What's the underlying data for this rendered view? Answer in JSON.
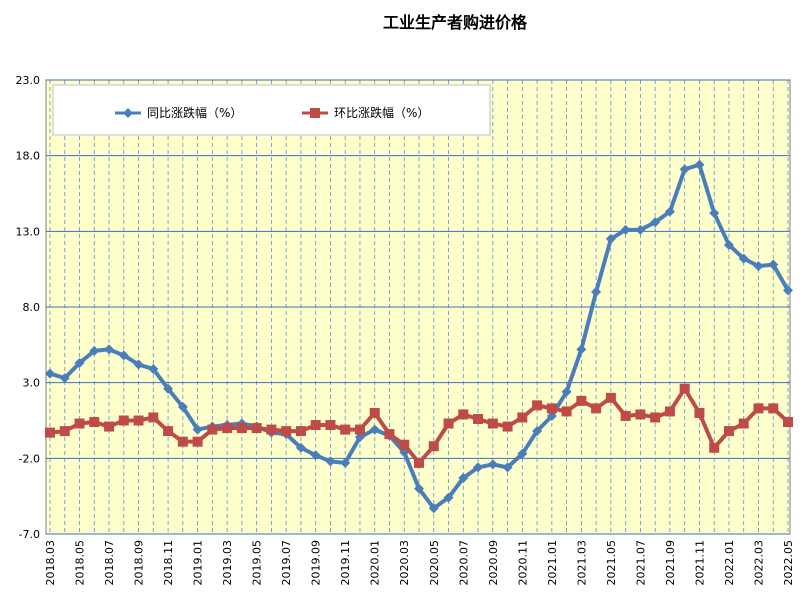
{
  "chart_data": {
    "type": "line",
    "title": "工业生产者购进价格",
    "ylim": [
      -7.0,
      23.0
    ],
    "yticks": [
      "23.0",
      "18.0",
      "13.0",
      "8.0",
      "3.0",
      "-2.0",
      "-7.0"
    ],
    "grid": {
      "horizontal": true,
      "vertical": "dashed"
    },
    "legend_position": "top-left",
    "x": [
      "2018.03",
      "2018.04",
      "2018.05",
      "2018.06",
      "2018.07",
      "2018.08",
      "2018.09",
      "2018.10",
      "2018.11",
      "2018.12",
      "2019.01",
      "2019.02",
      "2019.03",
      "2019.04",
      "2019.05",
      "2019.06",
      "2019.07",
      "2019.08",
      "2019.09",
      "2019.10",
      "2019.11",
      "2019.12",
      "2020.01",
      "2020.02",
      "2020.03",
      "2020.04",
      "2020.05",
      "2020.06",
      "2020.07",
      "2020.08",
      "2020.09",
      "2020.10",
      "2020.11",
      "2020.12",
      "2021.01",
      "2021.02",
      "2021.03",
      "2021.04",
      "2021.05",
      "2021.06",
      "2021.07",
      "2021.08",
      "2021.09",
      "2021.10",
      "2021.11",
      "2021.12",
      "2022.01",
      "2022.02",
      "2022.03",
      "2022.04",
      "2022.05"
    ],
    "x_labels_every": 2,
    "series": [
      {
        "name": "同比涨跌幅（%）",
        "color": "#4a7ebb",
        "marker": "diamond",
        "values": [
          3.6,
          3.3,
          4.3,
          5.1,
          5.2,
          4.8,
          4.2,
          3.9,
          2.6,
          1.4,
          -0.1,
          0.1,
          0.2,
          0.3,
          0.1,
          -0.3,
          -0.4,
          -1.3,
          -1.8,
          -2.2,
          -2.3,
          -0.6,
          -0.1,
          -0.5,
          -1.6,
          -4.0,
          -5.3,
          -4.6,
          -3.3,
          -2.6,
          -2.4,
          -2.6,
          -1.7,
          -0.2,
          0.8,
          2.4,
          5.2,
          9.0,
          12.5,
          13.1,
          13.1,
          13.6,
          14.3,
          17.1,
          17.4,
          14.2,
          12.1,
          11.2,
          10.7,
          10.8,
          9.1
        ]
      },
      {
        "name": "环比涨跌幅（%）",
        "color": "#be4b48",
        "marker": "square",
        "values": [
          -0.3,
          -0.2,
          0.3,
          0.4,
          0.1,
          0.5,
          0.5,
          0.7,
          -0.2,
          -0.9,
          -0.9,
          -0.1,
          0.0,
          0.0,
          0.0,
          -0.1,
          -0.2,
          -0.2,
          0.2,
          0.2,
          -0.1,
          -0.1,
          1.0,
          -0.4,
          -1.1,
          -2.3,
          -1.2,
          0.3,
          0.9,
          0.6,
          0.3,
          0.1,
          0.7,
          1.5,
          1.3,
          1.1,
          1.8,
          1.3,
          2.0,
          0.8,
          0.9,
          0.7,
          1.1,
          2.6,
          1.0,
          -1.3,
          -0.2,
          0.3,
          1.3,
          1.3,
          0.4
        ]
      }
    ]
  }
}
